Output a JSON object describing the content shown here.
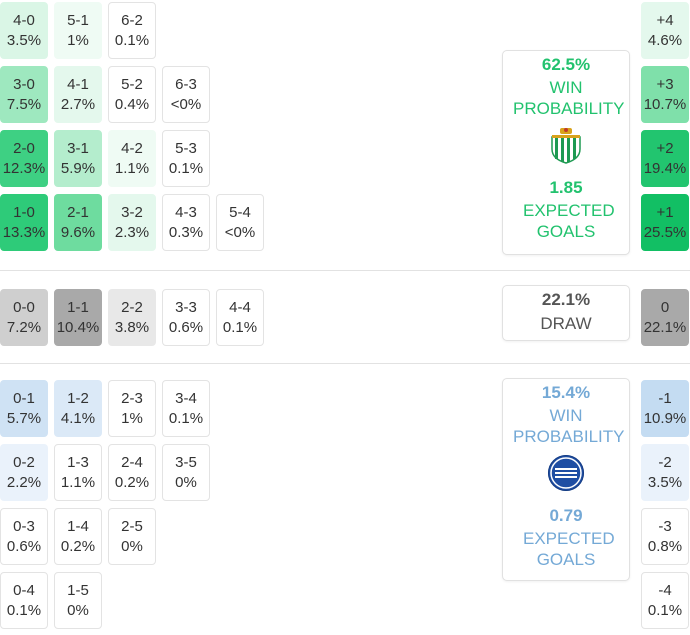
{
  "colors": {
    "home_text": "#22c26e",
    "away_text": "#74a9d6",
    "draw_text": "#555555"
  },
  "home_scores": [
    {
      "score": "4-0",
      "pct": "3.5%",
      "bg": "#daf6e6"
    },
    {
      "score": "5-1",
      "pct": "1%",
      "bg": "#effbf4"
    },
    {
      "score": "6-2",
      "pct": "0.1%",
      "bg": "#ffffff"
    },
    {
      "score": "3-0",
      "pct": "7.5%",
      "bg": "#9ee8bf"
    },
    {
      "score": "4-1",
      "pct": "2.7%",
      "bg": "#e4f8ed"
    },
    {
      "score": "5-2",
      "pct": "0.4%",
      "bg": "#ffffff"
    },
    {
      "score": "6-3",
      "pct": "<0%",
      "bg": "#ffffff"
    },
    {
      "score": "2-0",
      "pct": "12.3%",
      "bg": "#3ed083"
    },
    {
      "score": "3-1",
      "pct": "5.9%",
      "bg": "#b4edcd"
    },
    {
      "score": "4-2",
      "pct": "1.1%",
      "bg": "#effbf4"
    },
    {
      "score": "5-3",
      "pct": "0.1%",
      "bg": "#ffffff"
    },
    {
      "score": "1-0",
      "pct": "13.3%",
      "bg": "#2ecb79"
    },
    {
      "score": "2-1",
      "pct": "9.6%",
      "bg": "#6edc9f"
    },
    {
      "score": "3-2",
      "pct": "2.3%",
      "bg": "#e4f8ed"
    },
    {
      "score": "4-3",
      "pct": "0.3%",
      "bg": "#ffffff"
    },
    {
      "score": "5-4",
      "pct": "<0%",
      "bg": "#ffffff"
    }
  ],
  "draw_scores": [
    {
      "score": "0-0",
      "pct": "7.2%",
      "bg": "#cfcfcf"
    },
    {
      "score": "1-1",
      "pct": "10.4%",
      "bg": "#a9a9a9"
    },
    {
      "score": "2-2",
      "pct": "3.8%",
      "bg": "#e8e8e8"
    },
    {
      "score": "3-3",
      "pct": "0.6%",
      "bg": "#ffffff"
    },
    {
      "score": "4-4",
      "pct": "0.1%",
      "bg": "#ffffff"
    }
  ],
  "away_scores": [
    {
      "score": "0-1",
      "pct": "5.7%",
      "bg": "#cfe2f4"
    },
    {
      "score": "1-2",
      "pct": "4.1%",
      "bg": "#dbe9f7"
    },
    {
      "score": "2-3",
      "pct": "1%",
      "bg": "#ffffff"
    },
    {
      "score": "3-4",
      "pct": "0.1%",
      "bg": "#ffffff"
    },
    {
      "score": "0-2",
      "pct": "2.2%",
      "bg": "#eaf2fb"
    },
    {
      "score": "1-3",
      "pct": "1.1%",
      "bg": "#ffffff"
    },
    {
      "score": "2-4",
      "pct": "0.2%",
      "bg": "#ffffff"
    },
    {
      "score": "3-5",
      "pct": "0%",
      "bg": "#ffffff"
    },
    {
      "score": "0-3",
      "pct": "0.6%",
      "bg": "#ffffff"
    },
    {
      "score": "1-4",
      "pct": "0.2%",
      "bg": "#ffffff"
    },
    {
      "score": "2-5",
      "pct": "0%",
      "bg": "#ffffff"
    },
    {
      "score": "0-4",
      "pct": "0.1%",
      "bg": "#ffffff"
    },
    {
      "score": "1-5",
      "pct": "0%",
      "bg": "#ffffff"
    }
  ],
  "home_margins": [
    {
      "margin": "+4",
      "pct": "4.6%",
      "bg": "#e4f8ed"
    },
    {
      "margin": "+3",
      "pct": "10.7%",
      "bg": "#7fe0aa"
    },
    {
      "margin": "+2",
      "pct": "19.4%",
      "bg": "#22c56f"
    },
    {
      "margin": "+1",
      "pct": "25.5%",
      "bg": "#12bf64"
    }
  ],
  "draw_margin": {
    "margin": "0",
    "pct": "22.1%",
    "bg": "#a9a9a9"
  },
  "away_margins": [
    {
      "margin": "-1",
      "pct": "10.9%",
      "bg": "#c4dcf2"
    },
    {
      "margin": "-2",
      "pct": "3.5%",
      "bg": "#eaf2fb"
    },
    {
      "margin": "-3",
      "pct": "0.8%",
      "bg": "#ffffff"
    },
    {
      "margin": "-4",
      "pct": "0.1%",
      "bg": "#ffffff"
    }
  ],
  "home_card": {
    "win_pct": "62.5%",
    "win_label": "WIN PROBABILITY",
    "xg": "1.85",
    "xg_label": "EXPECTED GOALS"
  },
  "draw_card": {
    "pct": "22.1%",
    "label": "DRAW"
  },
  "away_card": {
    "win_pct": "15.4%",
    "win_label": "WIN PROBABILITY",
    "xg": "0.79",
    "xg_label": "EXPECTED GOALS"
  }
}
